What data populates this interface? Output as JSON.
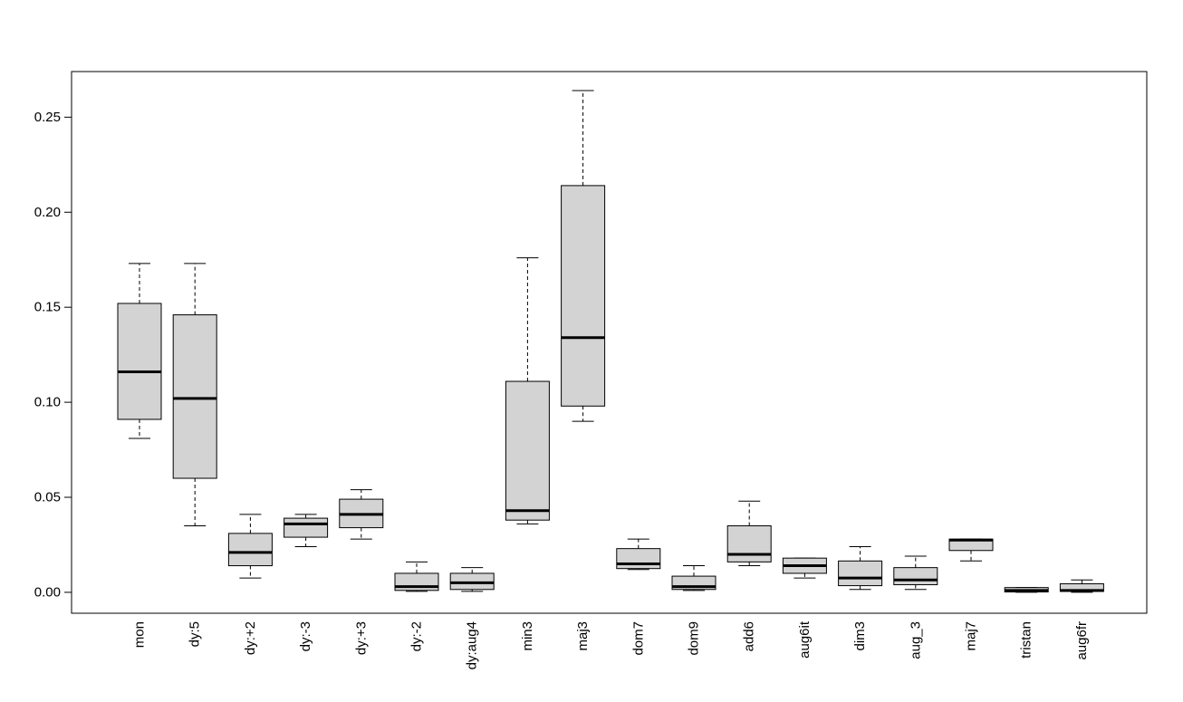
{
  "chart_data": {
    "type": "boxplot",
    "title": "",
    "xlabel": "",
    "ylabel": "",
    "ylim": [
      -0.011,
      0.274
    ],
    "yticks": [
      0.0,
      0.05,
      0.1,
      0.15,
      0.2,
      0.25
    ],
    "ytick_labels": [
      "0.00",
      "0.05",
      "0.10",
      "0.15",
      "0.20",
      "0.25"
    ],
    "grid": false,
    "legend": "none",
    "box_fill": "#d3d3d3",
    "line_color": "#000000",
    "categories": [
      "mon",
      "dy:5",
      "dy:+2",
      "dy:-3",
      "dy:+3",
      "dy:-2",
      "dy:aug4",
      "min3",
      "maj3",
      "dom7",
      "dom9",
      "add6",
      "aug6it",
      "dim3",
      "aug_3",
      "maj7",
      "tristan",
      "aug6fr"
    ],
    "boxes": [
      {
        "min": 0.081,
        "q1": 0.091,
        "median": 0.116,
        "q3": 0.152,
        "max": 0.173
      },
      {
        "min": 0.035,
        "q1": 0.06,
        "median": 0.102,
        "q3": 0.146,
        "max": 0.173
      },
      {
        "min": 0.0075,
        "q1": 0.014,
        "median": 0.021,
        "q3": 0.031,
        "max": 0.041
      },
      {
        "min": 0.024,
        "q1": 0.029,
        "median": 0.036,
        "q3": 0.039,
        "max": 0.041
      },
      {
        "min": 0.028,
        "q1": 0.034,
        "median": 0.041,
        "q3": 0.049,
        "max": 0.054
      },
      {
        "min": 0.0005,
        "q1": 0.001,
        "median": 0.003,
        "q3": 0.01,
        "max": 0.016
      },
      {
        "min": 0.0005,
        "q1": 0.0015,
        "median": 0.005,
        "q3": 0.01,
        "max": 0.013
      },
      {
        "min": 0.036,
        "q1": 0.038,
        "median": 0.043,
        "q3": 0.111,
        "max": 0.176
      },
      {
        "min": 0.09,
        "q1": 0.098,
        "median": 0.134,
        "q3": 0.214,
        "max": 0.264
      },
      {
        "min": 0.012,
        "q1": 0.0125,
        "median": 0.015,
        "q3": 0.023,
        "max": 0.028
      },
      {
        "min": 0.001,
        "q1": 0.0015,
        "median": 0.003,
        "q3": 0.0085,
        "max": 0.014
      },
      {
        "min": 0.014,
        "q1": 0.016,
        "median": 0.02,
        "q3": 0.035,
        "max": 0.048
      },
      {
        "min": 0.0075,
        "q1": 0.01,
        "median": 0.014,
        "q3": 0.018,
        "max": 0.018
      },
      {
        "min": 0.0015,
        "q1": 0.0035,
        "median": 0.0075,
        "q3": 0.0165,
        "max": 0.024
      },
      {
        "min": 0.0015,
        "q1": 0.004,
        "median": 0.0065,
        "q3": 0.013,
        "max": 0.019
      },
      {
        "min": 0.0165,
        "q1": 0.022,
        "median": 0.0275,
        "q3": 0.028,
        "max": 0.028
      },
      {
        "min": 0.0,
        "q1": 0.0002,
        "median": 0.001,
        "q3": 0.0025,
        "max": 0.0025
      },
      {
        "min": 0.0,
        "q1": 0.0005,
        "median": 0.001,
        "q3": 0.0045,
        "max": 0.0065
      }
    ]
  }
}
